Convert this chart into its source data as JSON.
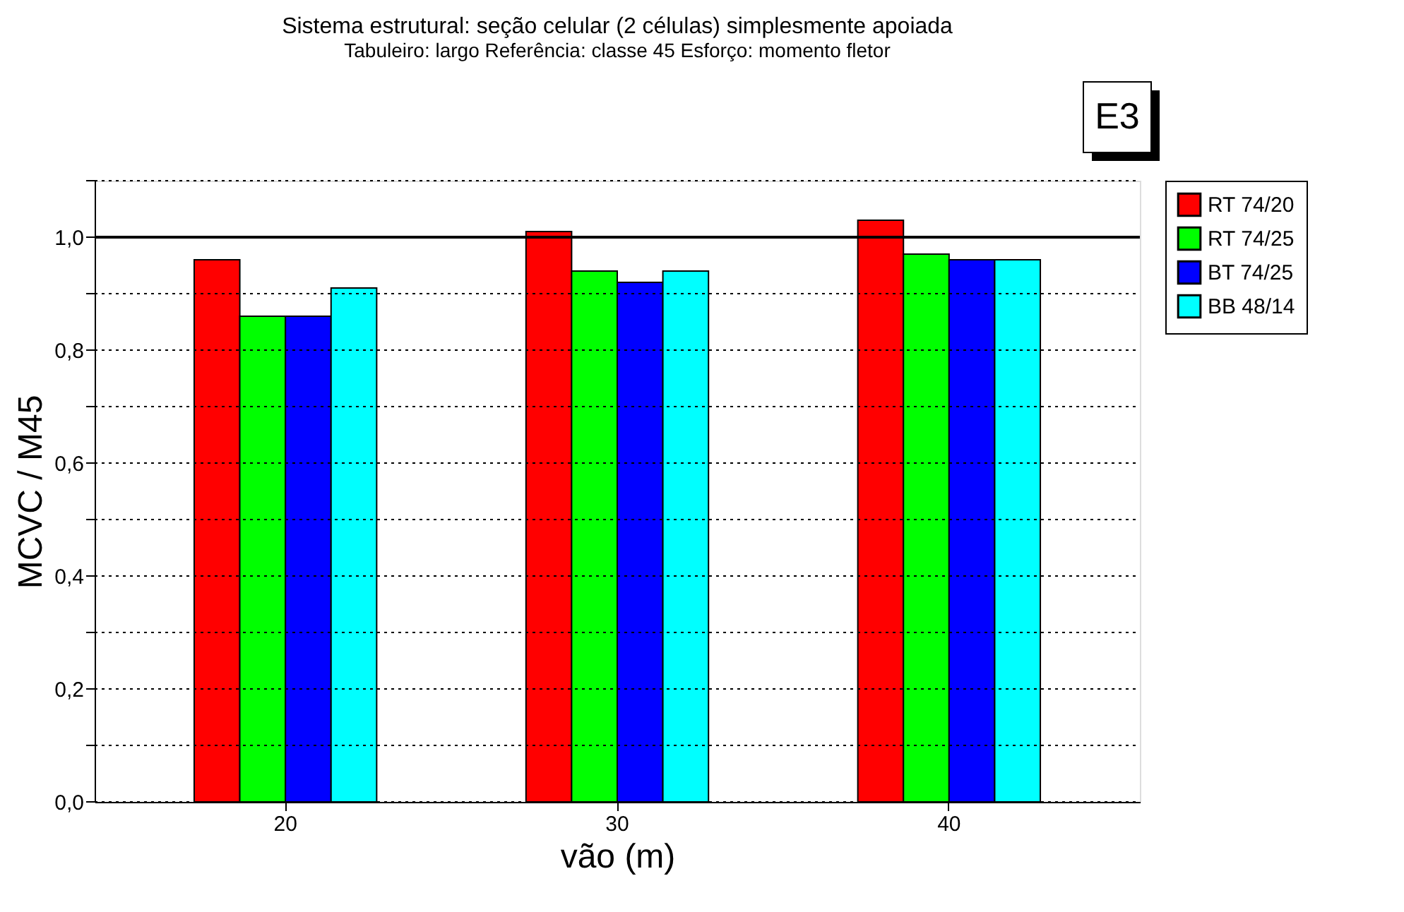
{
  "chart_data": {
    "type": "bar",
    "title": "Sistema estrutural: seção celular (2 células) simplesmente apoiada",
    "subtitle": "Tabuleiro: largo     Referência: classe 45     Esforço: momento fletor",
    "annotations": [
      "E3"
    ],
    "xlabel": "vão (m)",
    "ylabel": "MCVC / M45",
    "categories": [
      "20",
      "30",
      "40"
    ],
    "series": [
      {
        "name": "RT 74/20",
        "color": "#ff0000",
        "values": [
          0.96,
          1.01,
          1.03
        ]
      },
      {
        "name": "RT 74/25",
        "color": "#00ff00",
        "values": [
          0.86,
          0.94,
          0.97
        ]
      },
      {
        "name": "BT 74/25",
        "color": "#0000ff",
        "values": [
          0.86,
          0.92,
          0.96
        ]
      },
      {
        "name": "BB 48/14",
        "color": "#00ffff",
        "values": [
          0.91,
          0.94,
          0.96
        ]
      }
    ],
    "ylim": [
      0,
      1.1
    ],
    "yticks": [
      {
        "value": 0,
        "label": "0,0"
      },
      {
        "value": 0.1,
        "label": null
      },
      {
        "value": 0.2,
        "label": "0,2"
      },
      {
        "value": 0.3,
        "label": null
      },
      {
        "value": 0.4,
        "label": "0,4"
      },
      {
        "value": 0.5,
        "label": null
      },
      {
        "value": 0.6,
        "label": "0,6"
      },
      {
        "value": 0.7,
        "label": null
      },
      {
        "value": 0.8,
        "label": "0,8"
      },
      {
        "value": 0.9,
        "label": null
      },
      {
        "value": 1,
        "label": "1,0"
      },
      {
        "value": 1.1,
        "label": null
      }
    ],
    "ref_lines": [
      {
        "axis": "y",
        "value": 1,
        "label": null
      }
    ],
    "grid": "y",
    "legend": "right"
  }
}
